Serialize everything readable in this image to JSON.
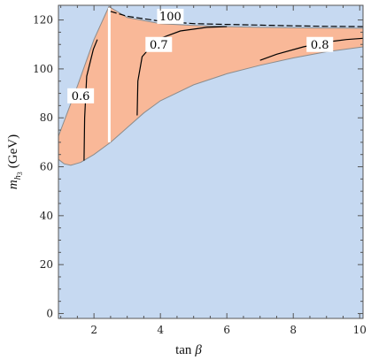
{
  "chart_data": {
    "type": "area",
    "title": "",
    "xlabel_base": "tan",
    "xlabel_symbol": "β",
    "ylabel_base": "m",
    "ylabel_sub": "h",
    "ylabel_subsub": "3",
    "ylabel_unit": "(GeV)",
    "xlim": [
      0.93,
      10.1
    ],
    "ylim": [
      -2,
      126
    ],
    "x_ticks": [
      2,
      4,
      6,
      8,
      10
    ],
    "y_ticks": [
      0,
      20,
      40,
      60,
      80,
      100,
      120
    ],
    "x_tick_labels": [
      "2",
      "4",
      "6",
      "8",
      "10"
    ],
    "y_tick_labels": [
      "0",
      "20",
      "40",
      "60",
      "80",
      "100",
      "120"
    ],
    "colors": {
      "background": "#c6d9f1",
      "region": "#f9b898",
      "region_edge": "#8c8c8c",
      "contour": "#000000",
      "gap": "#ffffff"
    },
    "region_upper": [
      [
        0.93,
        72.5
      ],
      [
        1.5,
        93
      ],
      [
        2.0,
        112
      ],
      [
        2.45,
        125.5
      ],
      [
        3.0,
        121
      ],
      [
        4.0,
        118.5
      ],
      [
        5.0,
        117.8
      ],
      [
        6.0,
        117.3
      ],
      [
        7.0,
        117
      ],
      [
        8.0,
        116.8
      ],
      [
        9.0,
        116.7
      ],
      [
        10.1,
        116.6
      ]
    ],
    "region_lower": [
      [
        0.93,
        63
      ],
      [
        1.1,
        61.2
      ],
      [
        1.3,
        60.6
      ],
      [
        1.6,
        61.8
      ],
      [
        2.0,
        65
      ],
      [
        2.5,
        70
      ],
      [
        3.0,
        76
      ],
      [
        3.5,
        82
      ],
      [
        4.0,
        87
      ],
      [
        5.0,
        93.5
      ],
      [
        6.0,
        98
      ],
      [
        7.0,
        101.5
      ],
      [
        8.0,
        104.5
      ],
      [
        9.0,
        107
      ],
      [
        10.1,
        109
      ]
    ],
    "gap_region": {
      "x": [
        2.42,
        2.5
      ],
      "y": [
        70,
        125
      ]
    },
    "contours": [
      {
        "label": "0.6",
        "label_pos": [
          1.6,
          89
        ],
        "points": [
          [
            1.7,
            62.5
          ],
          [
            1.72,
            80
          ],
          [
            1.78,
            97
          ],
          [
            1.98,
            108
          ],
          [
            2.1,
            112
          ]
        ]
      },
      {
        "label": "0.7",
        "label_pos": [
          3.95,
          110
        ],
        "points": [
          [
            3.3,
            81
          ],
          [
            3.32,
            95
          ],
          [
            3.45,
            105
          ],
          [
            3.9,
            112
          ],
          [
            4.6,
            115.5
          ],
          [
            5.4,
            117
          ],
          [
            6.0,
            117.3
          ]
        ]
      },
      {
        "label": "0.8",
        "label_pos": [
          8.8,
          110
        ],
        "points": [
          [
            7.0,
            103.5
          ],
          [
            7.5,
            106
          ],
          [
            8.3,
            109
          ],
          [
            9.0,
            111
          ],
          [
            9.6,
            112
          ],
          [
            10.1,
            112.5
          ]
        ]
      },
      {
        "label": "100",
        "label_pos": [
          4.3,
          121.5
        ],
        "dashed": true,
        "points": [
          [
            2.5,
            123.5
          ],
          [
            3.0,
            121.5
          ],
          [
            4.0,
            119.5
          ],
          [
            5.0,
            118.5
          ],
          [
            6.0,
            118.2
          ],
          [
            7.0,
            117.9
          ],
          [
            8.0,
            117.6
          ],
          [
            9.0,
            117.4
          ],
          [
            10.1,
            117.3
          ]
        ]
      }
    ],
    "grid": false,
    "legend": "none"
  }
}
